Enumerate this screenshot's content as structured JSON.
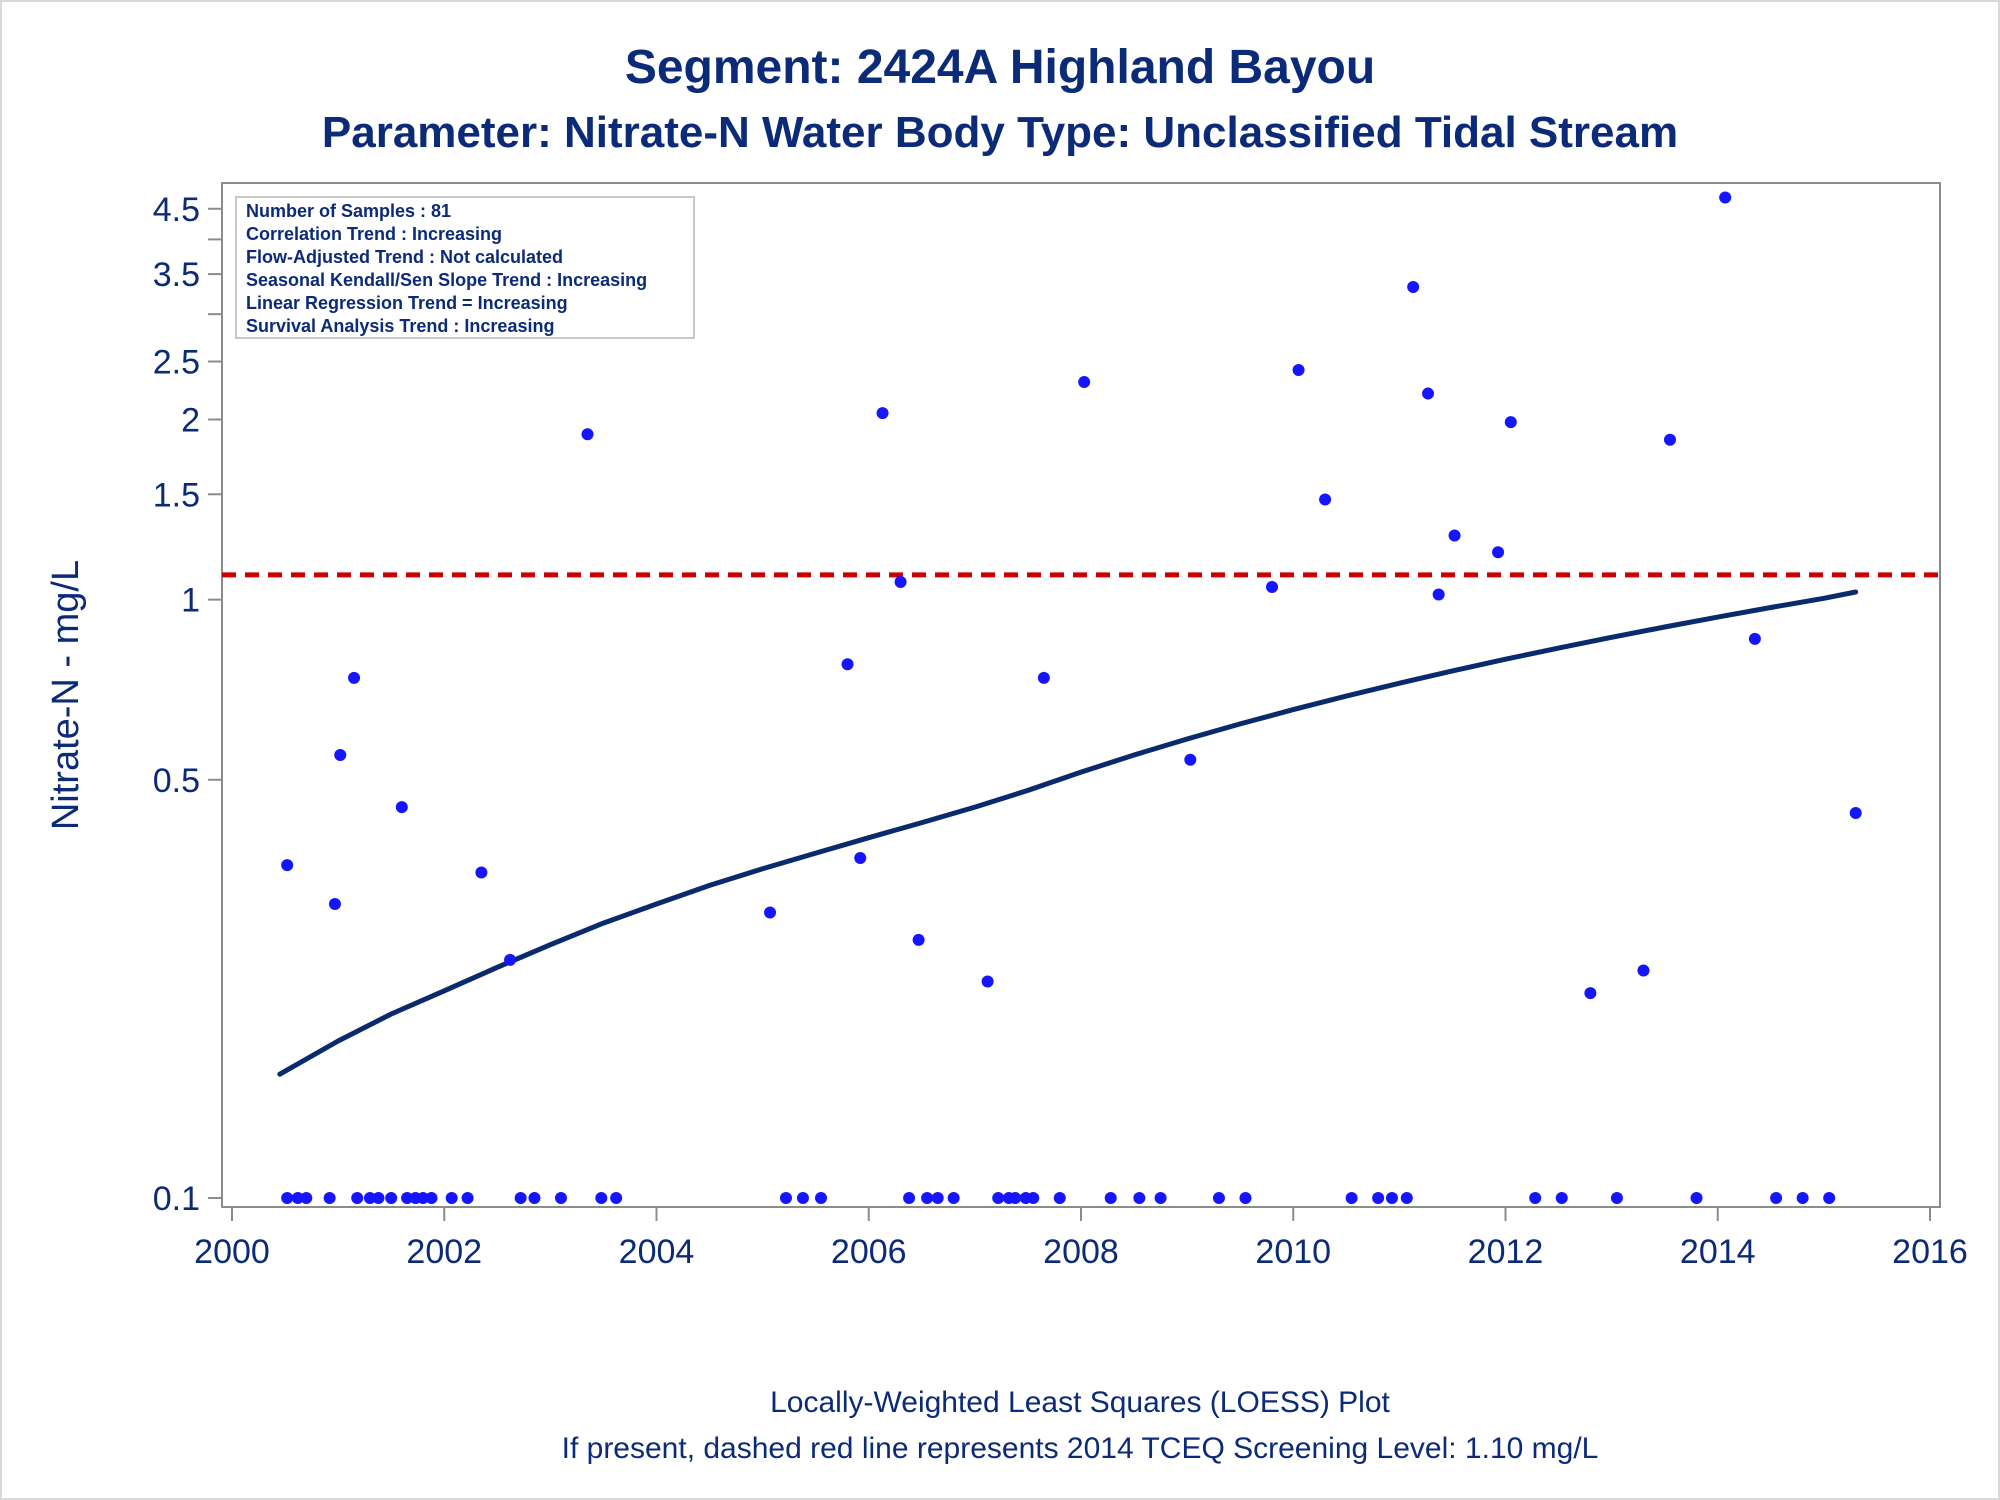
{
  "title": "Segment: 2424A  Highland Bayou",
  "subtitle": "Parameter: Nitrate-N   Water Body Type: Unclassified Tidal Stream",
  "footnote1": "Locally-Weighted Least Squares (LOESS) Plot",
  "footnote2": "If present, dashed red line represents 2014 TCEQ Screening Level: 1.10 mg/L",
  "legend_lines": [
    "Number of Samples : 81",
    "Correlation Trend : Increasing",
    "Flow-Adjusted Trend : Not calculated",
    "Seasonal Kendall/Sen Slope Trend : Increasing",
    "Linear Regression Trend = Increasing",
    "Survival Analysis Trend : Increasing"
  ],
  "colors": {
    "text": "#0b2a78",
    "points": "#1515ff",
    "loess": "#0a2a6e",
    "screening": "#cc0000",
    "axis": "#8c8c8c"
  },
  "chart_data": {
    "type": "scatter",
    "ylabel": "Nitrate-N - mg/L",
    "xlabel": "",
    "y_scale": "log",
    "xlim": [
      2000,
      2016
    ],
    "ylim": [
      0.1,
      4.8
    ],
    "x_ticks": [
      2000,
      2002,
      2004,
      2006,
      2008,
      2010,
      2012,
      2014,
      2016
    ],
    "x_tick_labels": [
      "2000",
      "2002",
      "2004",
      "2006",
      "2008",
      "2010",
      "2012",
      "2014",
      "2016"
    ],
    "y_ticks": [
      0.1,
      0.5,
      1,
      1.5,
      2,
      2.5,
      3.5,
      4.5
    ],
    "y_tick_labels": [
      "0.1",
      "0.5",
      "1",
      "1.5",
      "2",
      "2.5",
      "3.5",
      "4.5"
    ],
    "y_minor_ticks": [
      3,
      4
    ],
    "screening_level": 1.1,
    "points": [
      {
        "x": 2000.52,
        "y": 0.1
      },
      {
        "x": 2000.62,
        "y": 0.1
      },
      {
        "x": 2000.7,
        "y": 0.1
      },
      {
        "x": 2000.92,
        "y": 0.1
      },
      {
        "x": 2001.18,
        "y": 0.1
      },
      {
        "x": 2001.3,
        "y": 0.1
      },
      {
        "x": 2001.38,
        "y": 0.1
      },
      {
        "x": 2001.5,
        "y": 0.1
      },
      {
        "x": 2001.65,
        "y": 0.1
      },
      {
        "x": 2001.73,
        "y": 0.1
      },
      {
        "x": 2001.8,
        "y": 0.1
      },
      {
        "x": 2001.88,
        "y": 0.1
      },
      {
        "x": 2002.07,
        "y": 0.1
      },
      {
        "x": 2002.22,
        "y": 0.1
      },
      {
        "x": 2002.72,
        "y": 0.1
      },
      {
        "x": 2002.85,
        "y": 0.1
      },
      {
        "x": 2003.1,
        "y": 0.1
      },
      {
        "x": 2003.48,
        "y": 0.1
      },
      {
        "x": 2003.62,
        "y": 0.1
      },
      {
        "x": 2005.22,
        "y": 0.1
      },
      {
        "x": 2005.38,
        "y": 0.1
      },
      {
        "x": 2005.55,
        "y": 0.1
      },
      {
        "x": 2006.38,
        "y": 0.1
      },
      {
        "x": 2006.55,
        "y": 0.1
      },
      {
        "x": 2006.65,
        "y": 0.1
      },
      {
        "x": 2006.8,
        "y": 0.1
      },
      {
        "x": 2007.22,
        "y": 0.1
      },
      {
        "x": 2007.32,
        "y": 0.1
      },
      {
        "x": 2007.38,
        "y": 0.1
      },
      {
        "x": 2007.48,
        "y": 0.1
      },
      {
        "x": 2007.55,
        "y": 0.1
      },
      {
        "x": 2007.8,
        "y": 0.1
      },
      {
        "x": 2008.28,
        "y": 0.1
      },
      {
        "x": 2008.55,
        "y": 0.1
      },
      {
        "x": 2008.75,
        "y": 0.1
      },
      {
        "x": 2009.3,
        "y": 0.1
      },
      {
        "x": 2009.55,
        "y": 0.1
      },
      {
        "x": 2010.55,
        "y": 0.1
      },
      {
        "x": 2010.8,
        "y": 0.1
      },
      {
        "x": 2010.93,
        "y": 0.1
      },
      {
        "x": 2011.07,
        "y": 0.1
      },
      {
        "x": 2012.28,
        "y": 0.1
      },
      {
        "x": 2012.53,
        "y": 0.1
      },
      {
        "x": 2013.05,
        "y": 0.1
      },
      {
        "x": 2013.8,
        "y": 0.1
      },
      {
        "x": 2014.55,
        "y": 0.1
      },
      {
        "x": 2014.8,
        "y": 0.1
      },
      {
        "x": 2015.05,
        "y": 0.1
      },
      {
        "x": 2000.52,
        "y": 0.36
      },
      {
        "x": 2000.97,
        "y": 0.31
      },
      {
        "x": 2001.02,
        "y": 0.55
      },
      {
        "x": 2001.15,
        "y": 0.74
      },
      {
        "x": 2001.6,
        "y": 0.45
      },
      {
        "x": 2002.35,
        "y": 0.35
      },
      {
        "x": 2002.62,
        "y": 0.25
      },
      {
        "x": 2003.35,
        "y": 1.89
      },
      {
        "x": 2005.07,
        "y": 0.3
      },
      {
        "x": 2005.8,
        "y": 0.78
      },
      {
        "x": 2005.92,
        "y": 0.37
      },
      {
        "x": 2006.13,
        "y": 2.05
      },
      {
        "x": 2006.3,
        "y": 1.07
      },
      {
        "x": 2006.47,
        "y": 0.27
      },
      {
        "x": 2007.12,
        "y": 0.23
      },
      {
        "x": 2007.65,
        "y": 0.74
      },
      {
        "x": 2008.03,
        "y": 2.31
      },
      {
        "x": 2009.03,
        "y": 0.54
      },
      {
        "x": 2009.8,
        "y": 1.05
      },
      {
        "x": 2010.05,
        "y": 2.42
      },
      {
        "x": 2010.3,
        "y": 1.47
      },
      {
        "x": 2011.13,
        "y": 3.33
      },
      {
        "x": 2011.27,
        "y": 2.21
      },
      {
        "x": 2011.37,
        "y": 1.02
      },
      {
        "x": 2011.52,
        "y": 1.28
      },
      {
        "x": 2011.93,
        "y": 1.2
      },
      {
        "x": 2012.05,
        "y": 1.98
      },
      {
        "x": 2012.8,
        "y": 0.22
      },
      {
        "x": 2013.3,
        "y": 0.24
      },
      {
        "x": 2013.55,
        "y": 1.85
      },
      {
        "x": 2014.07,
        "y": 4.7
      },
      {
        "x": 2014.35,
        "y": 0.86
      },
      {
        "x": 2015.3,
        "y": 0.44
      }
    ],
    "loess": {
      "x": [
        2000.45,
        2001,
        2001.5,
        2002,
        2002.5,
        2003,
        2003.5,
        2004,
        2004.5,
        2005,
        2005.5,
        2006,
        2006.5,
        2007,
        2007.5,
        2008,
        2008.5,
        2009,
        2009.5,
        2010,
        2010.5,
        2011,
        2011.5,
        2012,
        2012.5,
        2013,
        2013.5,
        2014,
        2014.5,
        2015,
        2015.3
      ],
      "y": [
        0.161,
        0.183,
        0.203,
        0.222,
        0.243,
        0.265,
        0.288,
        0.31,
        0.333,
        0.355,
        0.377,
        0.4,
        0.424,
        0.45,
        0.48,
        0.515,
        0.55,
        0.585,
        0.62,
        0.655,
        0.69,
        0.725,
        0.76,
        0.795,
        0.83,
        0.865,
        0.9,
        0.935,
        0.97,
        1.005,
        1.03
      ]
    }
  }
}
